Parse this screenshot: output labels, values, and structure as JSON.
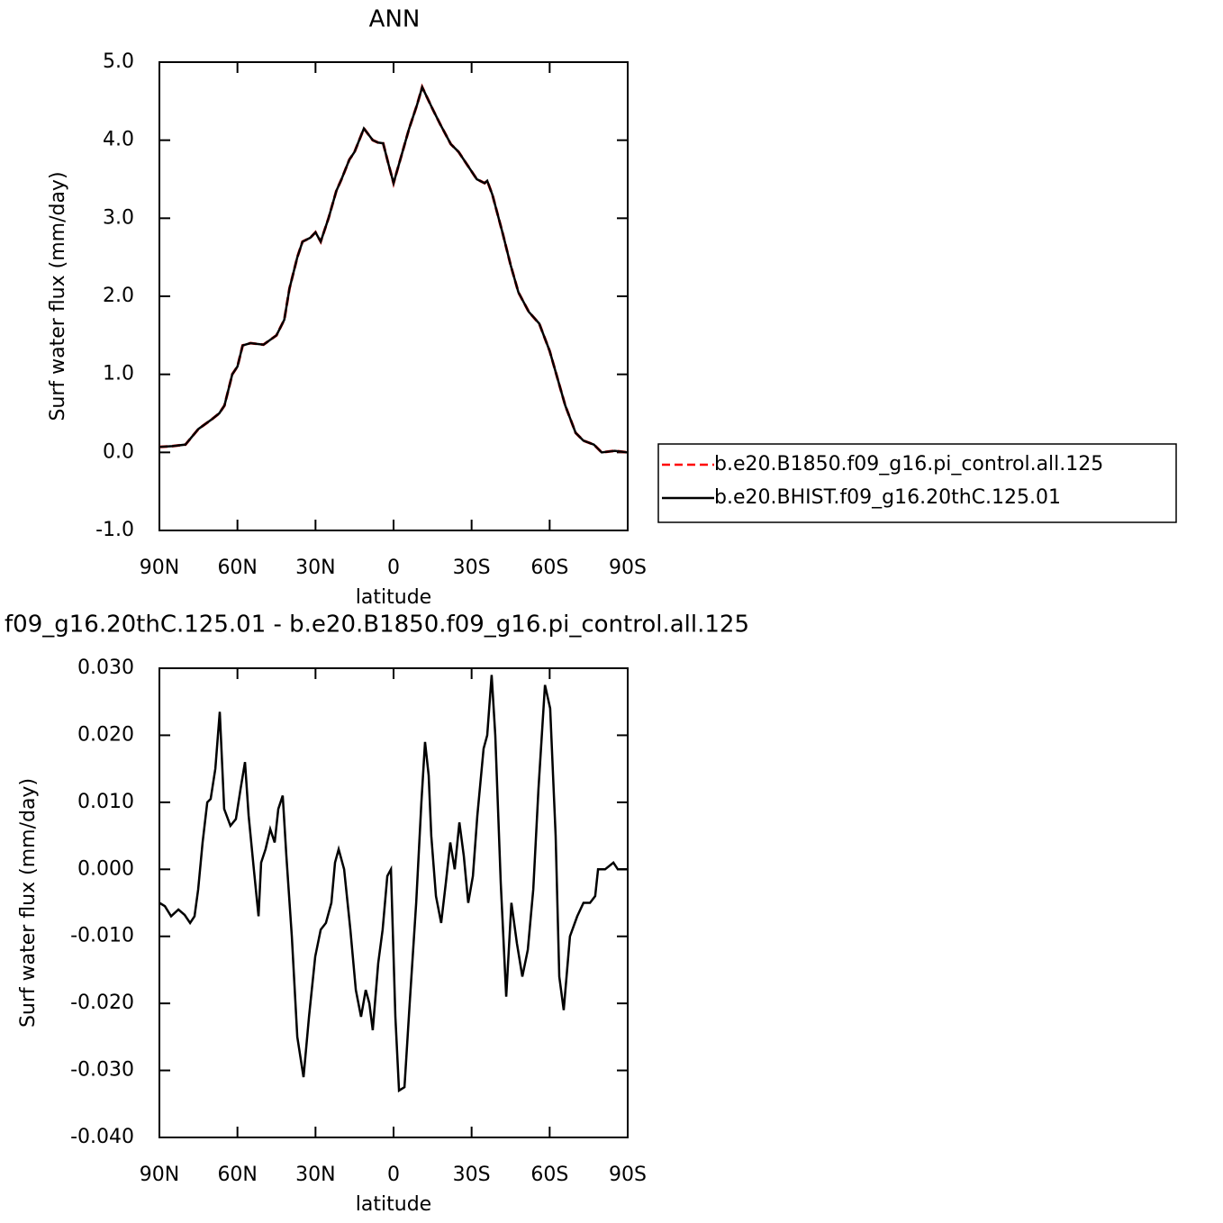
{
  "chart_data": [
    {
      "type": "line",
      "title": "ANN",
      "xlabel": "latitude",
      "ylabel": "Surf water flux (mm/day)",
      "xlim": [
        90,
        -90
      ],
      "xticks": [
        {
          "value": 90,
          "label": "90N"
        },
        {
          "value": 60,
          "label": "60N"
        },
        {
          "value": 30,
          "label": "30N"
        },
        0,
        {
          "value": -30,
          "label": "30S"
        },
        {
          "value": -60,
          "label": "60S"
        },
        {
          "value": -90,
          "label": "90S"
        }
      ],
      "ylim": [
        -1,
        5
      ],
      "yticks": [
        {
          "value": -1,
          "label": "-1.0"
        },
        {
          "value": 0,
          "label": "0.0"
        },
        {
          "value": 1,
          "label": "1.0"
        },
        {
          "value": 2,
          "label": "2.0"
        },
        {
          "value": 3,
          "label": "3.0"
        },
        {
          "value": 4,
          "label": "4.0"
        },
        {
          "value": 5,
          "label": "5.0"
        }
      ],
      "legend": "outside-right",
      "x": [
        90,
        85,
        80,
        75,
        70,
        67,
        65,
        62,
        60,
        58,
        55,
        50,
        45,
        42,
        40,
        37,
        35,
        32,
        30,
        28,
        25,
        22,
        20,
        17,
        15,
        11.4,
        8,
        6,
        4,
        2,
        0,
        -3,
        -6,
        -9,
        -11,
        -15,
        -18,
        -22,
        -25,
        -28,
        -32,
        -35,
        -36,
        -38,
        -42,
        -45,
        -48,
        -52,
        -56,
        -60,
        -63,
        -66,
        -70,
        -73,
        -77,
        -80,
        -85,
        -90
      ],
      "series": [
        {
          "name": "b.e20.B1850.f09_g16.pi_control.all.125",
          "color": "#ff0000",
          "dash": true,
          "values": [
            0.07,
            0.08,
            0.1,
            0.3,
            0.42,
            0.5,
            0.6,
            1.0,
            1.1,
            1.37,
            1.4,
            1.38,
            1.5,
            1.7,
            2.1,
            2.5,
            2.7,
            2.75,
            2.82,
            2.7,
            3.0,
            3.35,
            3.5,
            3.75,
            3.85,
            4.15,
            4.0,
            3.97,
            3.96,
            3.7,
            3.45,
            3.8,
            4.15,
            4.45,
            4.68,
            4.4,
            4.2,
            3.95,
            3.85,
            3.7,
            3.5,
            3.45,
            3.48,
            3.3,
            2.8,
            2.4,
            2.05,
            1.8,
            1.65,
            1.3,
            0.95,
            0.6,
            0.25,
            0.15,
            0.1,
            0.0,
            0.02,
            0.0
          ]
        },
        {
          "name": "b.e20.BHIST.f09_g16.20thC.125.01",
          "color": "#000000",
          "dash": false,
          "values": [
            0.07,
            0.08,
            0.1,
            0.3,
            0.42,
            0.5,
            0.6,
            1.0,
            1.1,
            1.37,
            1.4,
            1.38,
            1.5,
            1.7,
            2.1,
            2.5,
            2.7,
            2.75,
            2.82,
            2.7,
            3.0,
            3.35,
            3.5,
            3.75,
            3.85,
            4.15,
            4.0,
            3.97,
            3.96,
            3.7,
            3.45,
            3.8,
            4.15,
            4.45,
            4.68,
            4.4,
            4.2,
            3.95,
            3.85,
            3.7,
            3.5,
            3.45,
            3.48,
            3.3,
            2.8,
            2.4,
            2.05,
            1.8,
            1.65,
            1.3,
            0.95,
            0.6,
            0.25,
            0.15,
            0.1,
            0.0,
            0.02,
            0.0
          ]
        }
      ]
    },
    {
      "type": "line",
      "title": "f09_g16.20thC.125.01 - b.e20.B1850.f09_g16.pi_control.all.125",
      "xlabel": "latitude",
      "ylabel": "Surf water flux (mm/day)",
      "xlim": [
        90,
        -90
      ],
      "xticks": [
        {
          "value": 90,
          "label": "90N"
        },
        {
          "value": 60,
          "label": "60N"
        },
        {
          "value": 30,
          "label": "30N"
        },
        0,
        {
          "value": -30,
          "label": "30S"
        },
        {
          "value": -60,
          "label": "60S"
        },
        {
          "value": -90,
          "label": "90S"
        }
      ],
      "ylim": [
        -0.04,
        0.03
      ],
      "yticks": [
        {
          "value": -0.04,
          "label": "-0.040"
        },
        {
          "value": -0.03,
          "label": "-0.030"
        },
        {
          "value": -0.02,
          "label": "-0.020"
        },
        {
          "value": -0.01,
          "label": "-0.010"
        },
        {
          "value": 0,
          "label": "0.000"
        },
        {
          "value": 0.01,
          "label": "0.010"
        },
        {
          "value": 0.02,
          "label": "0.020"
        },
        {
          "value": 0.03,
          "label": "0.030"
        }
      ],
      "x": [
        90,
        87.9,
        85.5,
        82.7,
        80.3,
        78.2,
        76.5,
        75.1,
        73.4,
        71.6,
        70.3,
        68.5,
        66.8,
        65.1,
        62.7,
        60.6,
        58.8,
        57.1,
        55.7,
        53.7,
        51.9,
        50.9,
        49.2,
        47.4,
        45.7,
        44.3,
        42.6,
        41.2,
        39.1,
        37.0,
        34.6,
        32.5,
        30.1,
        28.0,
        26.0,
        23.9,
        22.5,
        21.1,
        19.0,
        16.6,
        14.5,
        12.5,
        10.7,
        9.3,
        8.0,
        5.9,
        4.2,
        2.4,
        1.0,
        -0.7,
        -2.1,
        -4.2,
        -6.2,
        -8.7,
        -10.7,
        -12.1,
        -13.5,
        -14.5,
        -16.3,
        -18.3,
        -20.1,
        -21.8,
        -23.5,
        -25.3,
        -27.0,
        -28.7,
        -30.5,
        -32.2,
        -34.6,
        -36.0,
        -37.7,
        -39.1,
        -41.2,
        -43.3,
        -45.3,
        -47.4,
        -49.5,
        -51.6,
        -53.7,
        -55.7,
        -58.2,
        -60.2,
        -62.3,
        -63.7,
        -65.4,
        -67.8,
        -70.6,
        -73.0,
        -75.5,
        -77.5,
        -78.6,
        -81.3,
        -84.5,
        -86.2,
        -90
      ],
      "series": [
        {
          "color": "#000000",
          "values": [
            -0.005,
            -0.0055,
            -0.007,
            -0.006,
            -0.0068,
            -0.008,
            -0.007,
            -0.003,
            0.004,
            0.01,
            0.0105,
            0.015,
            0.0235,
            0.009,
            0.0065,
            0.0075,
            0.012,
            0.016,
            0.008,
            0.0,
            -0.007,
            0.001,
            0.003,
            0.006,
            0.004,
            0.009,
            0.011,
            0.002,
            -0.01,
            -0.025,
            -0.031,
            -0.022,
            -0.013,
            -0.009,
            -0.008,
            -0.005,
            0.001,
            0.003,
            0.0,
            -0.009,
            -0.018,
            -0.022,
            -0.018,
            -0.02,
            -0.024,
            -0.014,
            -0.009,
            -0.001,
            0.0,
            -0.022,
            -0.033,
            -0.0325,
            -0.02,
            -0.005,
            0.01,
            0.019,
            0.014,
            0.005,
            -0.004,
            -0.008,
            -0.002,
            0.004,
            0.0,
            0.007,
            0.002,
            -0.005,
            -0.001,
            0.008,
            0.018,
            0.02,
            0.029,
            0.02,
            -0.002,
            -0.019,
            -0.005,
            -0.011,
            -0.016,
            -0.012,
            -0.003,
            0.012,
            0.0275,
            0.024,
            0.005,
            -0.016,
            -0.021,
            -0.01,
            -0.007,
            -0.005,
            -0.005,
            -0.004,
            0.0,
            0.0,
            0.001,
            0.0,
            0.0
          ]
        }
      ]
    }
  ]
}
